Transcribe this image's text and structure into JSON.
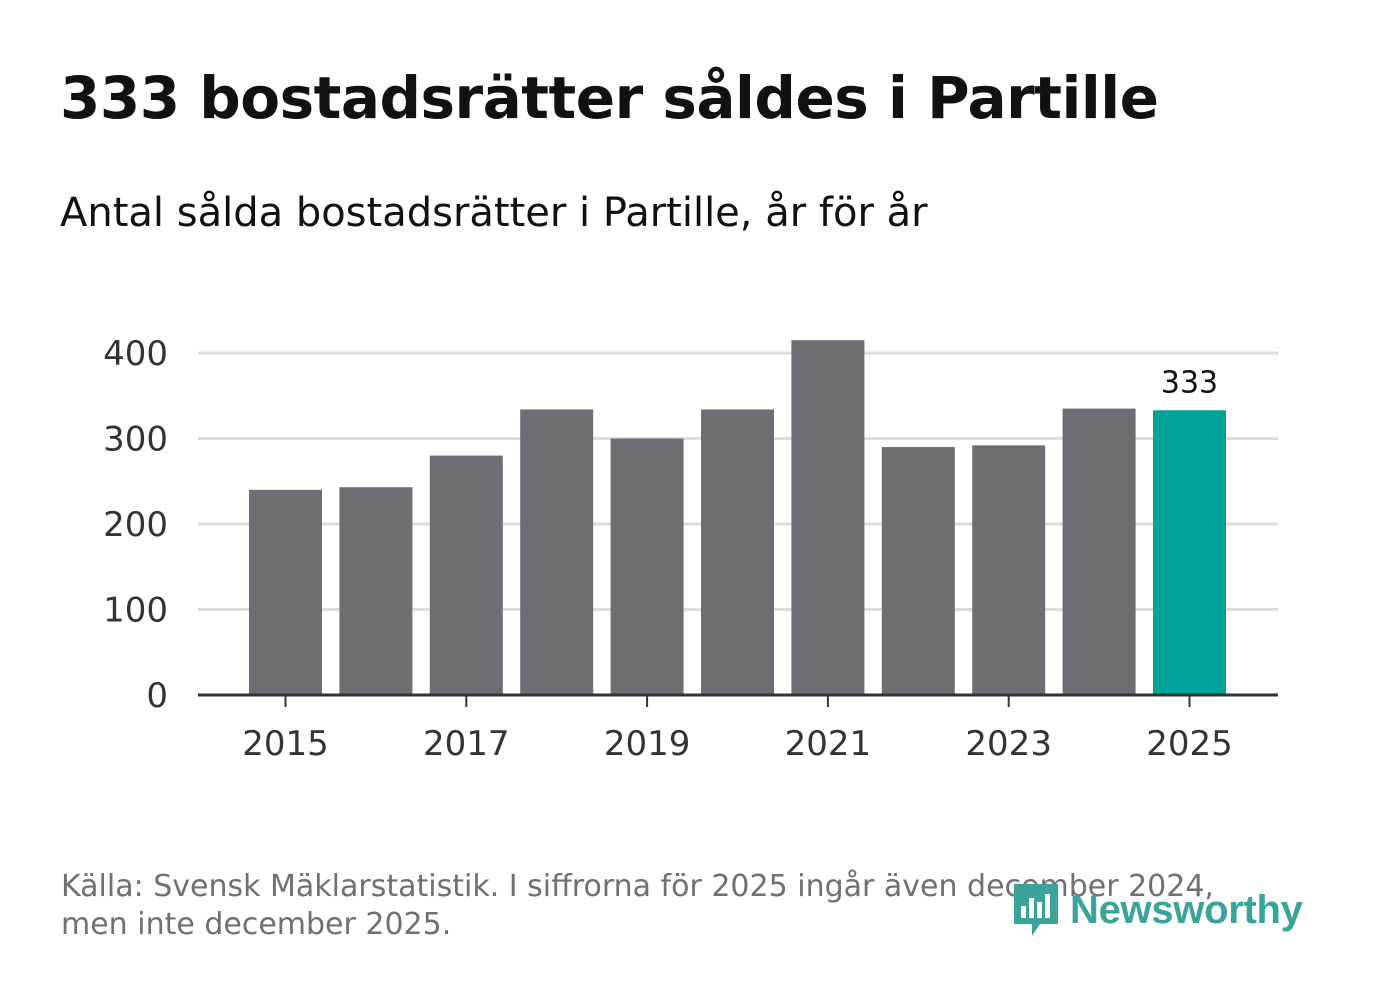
{
  "header": {
    "title": "333 bostadsrätter såldes i Partille",
    "subtitle": "Antal sålda bostadsrätter i Partille, år för år"
  },
  "chart_data": {
    "type": "bar",
    "title": "333 bostadsrätter såldes i Partille",
    "subtitle": "Antal sålda bostadsrätter i Partille, år för år",
    "xlabel": "",
    "ylabel": "",
    "categories": [
      "2015",
      "2016",
      "2017",
      "2018",
      "2019",
      "2020",
      "2021",
      "2022",
      "2023",
      "2024",
      "2025"
    ],
    "values": [
      240,
      243,
      280,
      334,
      300,
      334,
      415,
      290,
      292,
      335,
      333
    ],
    "ylim": [
      0,
      400
    ],
    "yticks": [
      0,
      100,
      200,
      300,
      400
    ],
    "xtick_labels": [
      "2015",
      "2017",
      "2019",
      "2021",
      "2023",
      "2025"
    ],
    "highlight_index": 10,
    "data_labels": [
      {
        "index": 10,
        "text": "333"
      }
    ],
    "grid": true,
    "colors": {
      "bar": "#6e6d73",
      "highlight": "#00a39a",
      "grid": "#dddddd",
      "axis": "#333333",
      "tick_text": "#333333"
    }
  },
  "footer": {
    "source_line1": "Källa: Svensk Mäklarstatistik. I siffrorna för 2025 ingår även december 2024,",
    "source_line2": "men inte december 2025.",
    "logo_text": "Newsworthy",
    "logo_icon": "bar-chart-icon",
    "logo_color": "#3aa39a"
  }
}
